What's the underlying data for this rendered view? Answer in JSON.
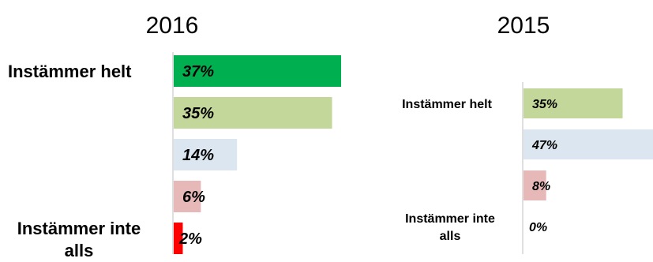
{
  "chart_data": [
    {
      "type": "bar",
      "orientation": "horizontal",
      "title": "2016",
      "categories": [
        "Instämmer helt",
        "",
        "",
        "",
        "Instämmer inte alls"
      ],
      "values": [
        37,
        35,
        14,
        6,
        2
      ],
      "labels": [
        "37%",
        "35%",
        "14%",
        "6%",
        "2%"
      ],
      "colors": [
        "#00b050",
        "#c4d79b",
        "#dce6f1",
        "#e6b9b8",
        "#ff0000"
      ],
      "xlim": [
        0,
        37
      ]
    },
    {
      "type": "bar",
      "orientation": "horizontal",
      "title": "2015",
      "categories": [
        "Instämmer helt",
        "",
        "",
        "Instämmer inte alls"
      ],
      "values": [
        35,
        47,
        8,
        0
      ],
      "labels": [
        "35%",
        "47%",
        "8%",
        "0%"
      ],
      "colors": [
        "#c4d79b",
        "#dce6f1",
        "#e6b9b8",
        "#e6b9b8"
      ],
      "xlim": [
        0,
        46
      ]
    }
  ]
}
